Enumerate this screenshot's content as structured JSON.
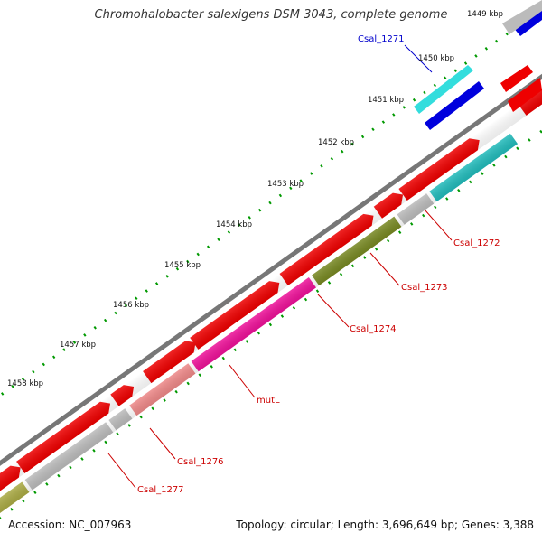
{
  "title": "Chromohalobacter salexigens DSM 3043, complete genome",
  "footer": {
    "accession": "Accession: NC_007963",
    "stats": "Topology: circular; Length: 3,696,649 bp; Genes: 3,388"
  },
  "scale_labels": [
    "1449 kbp",
    "1450 kbp",
    "1451 kbp",
    "1452 kbp",
    "1453 kbp",
    "1454 kbp",
    "1455 kbp",
    "1456 kbp",
    "1457 kbp",
    "1458 kbp"
  ],
  "gene_labels": [
    {
      "text": "Csal_1271",
      "color": "#0000cc"
    },
    {
      "text": "Csal_1272",
      "color": "#cc0000"
    },
    {
      "text": "Csal_1273",
      "color": "#cc0000"
    },
    {
      "text": "Csal_1274",
      "color": "#cc0000"
    },
    {
      "text": "mutL",
      "color": "#cc0000"
    },
    {
      "text": "Csal_1276",
      "color": "#cc0000"
    },
    {
      "text": "Csal_1277",
      "color": "#cc0000"
    }
  ],
  "colors": {
    "backbone": "#888888",
    "cds_forward": "#ee0000",
    "tick": "#008800",
    "Csal_1271": "#33dddd",
    "Csal_1272": "#22bbbb",
    "Csal_1273": "#bbbbbb",
    "Csal_1274": "#778822",
    "mutL": "#ee1199",
    "Csal_1276": "#ee8888",
    "Csal_1277": "#bbbbbb",
    "blue_feature": "#0000dd",
    "olive_feature": "#aaaa44"
  }
}
